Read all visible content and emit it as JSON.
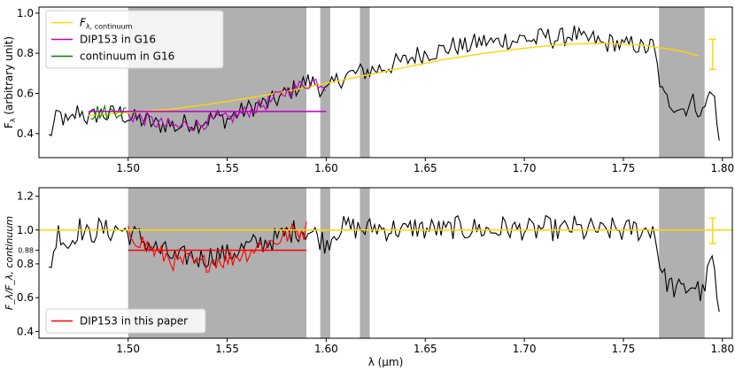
{
  "chart_data": [
    {
      "type": "line",
      "id": "top",
      "xlabel": "",
      "ylabel_main": "F",
      "ylabel_sub": "λ",
      "ylabel_rest": " (arbitrary unit)",
      "xlim": [
        1.455,
        1.805
      ],
      "ylim": [
        0.28,
        1.03
      ],
      "xticks": [
        "1.50",
        "1.55",
        "1.60",
        "1.65",
        "1.70",
        "1.75",
        "1.80"
      ],
      "yticks": [
        "0.4",
        "0.6",
        "0.8",
        "1.0"
      ],
      "shaded_bands": [
        [
          1.5,
          1.59
        ],
        [
          1.597,
          1.602
        ],
        [
          1.617,
          1.622
        ],
        [
          1.768,
          1.791
        ]
      ],
      "legend": {
        "placement": "top-left",
        "entries": [
          {
            "main": "F",
            "sub": "λ, continuum",
            "color": "#FFD700"
          },
          {
            "main": "DIP153 in G16",
            "sub": "",
            "color": "#BF00BF"
          },
          {
            "main": "continuum in G16",
            "sub": "",
            "color": "#008000"
          }
        ]
      },
      "series": [
        {
          "name": "F",
          "role": "spectrum",
          "color": "#000000",
          "x": [
            1.46,
            1.465,
            1.47,
            1.475,
            1.48,
            1.485,
            1.49,
            1.495,
            1.5,
            1.505,
            1.51,
            1.515,
            1.52,
            1.525,
            1.53,
            1.535,
            1.54,
            1.545,
            1.55,
            1.555,
            1.56,
            1.565,
            1.57,
            1.575,
            1.58,
            1.585,
            1.59,
            1.595,
            1.6,
            1.605,
            1.61,
            1.615,
            1.62,
            1.625,
            1.63,
            1.635,
            1.64,
            1.645,
            1.65,
            1.655,
            1.66,
            1.665,
            1.67,
            1.675,
            1.68,
            1.685,
            1.69,
            1.695,
            1.7,
            1.705,
            1.71,
            1.715,
            1.72,
            1.725,
            1.73,
            1.735,
            1.74,
            1.745,
            1.75,
            1.755,
            1.76,
            1.765,
            1.77,
            1.775,
            1.78,
            1.785,
            1.79,
            1.795,
            1.799
          ],
          "y": [
            0.38,
            0.5,
            0.44,
            0.52,
            0.47,
            0.5,
            0.49,
            0.51,
            0.48,
            0.47,
            0.46,
            0.44,
            0.45,
            0.43,
            0.46,
            0.45,
            0.47,
            0.48,
            0.47,
            0.5,
            0.52,
            0.54,
            0.55,
            0.57,
            0.6,
            0.63,
            0.66,
            0.65,
            0.6,
            0.66,
            0.69,
            0.7,
            0.71,
            0.72,
            0.73,
            0.75,
            0.76,
            0.79,
            0.8,
            0.81,
            0.82,
            0.84,
            0.83,
            0.85,
            0.86,
            0.85,
            0.87,
            0.86,
            0.88,
            0.86,
            0.89,
            0.87,
            0.88,
            0.9,
            0.86,
            0.87,
            0.84,
            0.86,
            0.83,
            0.85,
            0.82,
            0.84,
            0.58,
            0.55,
            0.52,
            0.56,
            0.5,
            0.64,
            0.3
          ],
          "noise": 0.05
        },
        {
          "name": "F_cont",
          "role": "continuum_fit",
          "color": "#FFD700",
          "x": [
            1.48,
            1.5,
            1.52,
            1.54,
            1.56,
            1.58,
            1.6,
            1.62,
            1.64,
            1.66,
            1.68,
            1.7,
            1.72,
            1.74,
            1.76,
            1.78,
            1.79
          ],
          "y": [
            0.49,
            0.505,
            0.52,
            0.545,
            0.575,
            0.61,
            0.65,
            0.69,
            0.73,
            0.77,
            0.8,
            0.825,
            0.845,
            0.85,
            0.84,
            0.81,
            0.78
          ]
        },
        {
          "name": "DIP153 in G16",
          "role": "dip",
          "color": "#BF00BF",
          "x": [
            1.5,
            1.505,
            1.51,
            1.515,
            1.52,
            1.525,
            1.53,
            1.535,
            1.54,
            1.545,
            1.55,
            1.555,
            1.56,
            1.565,
            1.57,
            1.575,
            1.58,
            1.585,
            1.59,
            1.595,
            1.6
          ],
          "y": [
            0.49,
            0.48,
            0.47,
            0.45,
            0.44,
            0.43,
            0.45,
            0.44,
            0.46,
            0.47,
            0.47,
            0.49,
            0.51,
            0.53,
            0.55,
            0.58,
            0.61,
            0.63,
            0.65,
            0.66,
            0.64
          ],
          "noise": 0.035
        },
        {
          "name": "continuum in G16",
          "role": "continuum_region",
          "color": "#008000",
          "x": [
            1.481,
            1.485,
            1.49,
            1.495,
            1.5
          ],
          "y": [
            0.5,
            0.51,
            0.5,
            0.52,
            0.5
          ],
          "noise": 0.04
        }
      ],
      "hlines": [
        {
          "y": 0.51,
          "x": [
            1.48,
            1.6
          ],
          "color": "#BF00BF"
        }
      ],
      "errorbar": {
        "x": 1.795,
        "y": 0.8,
        "lo": 0.72,
        "hi": 0.87,
        "color": "#FFD700"
      }
    },
    {
      "type": "line",
      "id": "bottom",
      "xlabel": "λ (μm)",
      "ylabel": "F_λ/F_λ, continuum",
      "xlim": [
        1.455,
        1.805
      ],
      "ylim": [
        0.36,
        1.25
      ],
      "xticks": [
        "1.50",
        "1.55",
        "1.60",
        "1.65",
        "1.70",
        "1.75",
        "1.80"
      ],
      "yticks": [
        "0.4",
        "0.6",
        "0.8",
        "1.0",
        "1.2"
      ],
      "extra_ytick": {
        "label": "0.88",
        "value": 0.88,
        "color": "#FF0000"
      },
      "shaded_bands": [
        [
          1.5,
          1.59
        ],
        [
          1.597,
          1.602
        ],
        [
          1.617,
          1.622
        ],
        [
          1.768,
          1.791
        ]
      ],
      "legend": {
        "placement": "bottom-left",
        "entries": [
          {
            "main": "DIP153 in this paper",
            "sub": "",
            "color": "#FF0000"
          }
        ]
      },
      "series": [
        {
          "name": "F",
          "role": "normalized_spectrum",
          "color": "#000000",
          "x": [
            1.46,
            1.465,
            1.47,
            1.475,
            1.48,
            1.485,
            1.49,
            1.495,
            1.5,
            1.505,
            1.51,
            1.515,
            1.52,
            1.525,
            1.53,
            1.535,
            1.54,
            1.545,
            1.55,
            1.555,
            1.56,
            1.565,
            1.57,
            1.575,
            1.58,
            1.585,
            1.59,
            1.595,
            1.6,
            1.605,
            1.61,
            1.615,
            1.62,
            1.625,
            1.63,
            1.635,
            1.64,
            1.645,
            1.65,
            1.655,
            1.66,
            1.665,
            1.67,
            1.675,
            1.68,
            1.685,
            1.69,
            1.695,
            1.7,
            1.705,
            1.71,
            1.715,
            1.72,
            1.725,
            1.73,
            1.735,
            1.74,
            1.745,
            1.75,
            1.755,
            1.76,
            1.765,
            1.77,
            1.775,
            1.78,
            1.785,
            1.79,
            1.795,
            1.799
          ],
          "y": [
            0.76,
            1.0,
            0.9,
            1.02,
            0.96,
            1.01,
            0.99,
            1.01,
            0.98,
            0.96,
            0.92,
            0.88,
            0.86,
            0.82,
            0.85,
            0.83,
            0.84,
            0.86,
            0.85,
            0.88,
            0.9,
            0.92,
            0.93,
            0.95,
            0.98,
            1.0,
            1.0,
            0.97,
            0.92,
            1.0,
            1.02,
            1.01,
            1.0,
            1.02,
            1.0,
            1.01,
            0.99,
            1.02,
            1.0,
            1.01,
            0.99,
            1.02,
            1.0,
            1.01,
            1.0,
            0.99,
            1.02,
            1.0,
            1.01,
            0.99,
            1.02,
            1.0,
            1.0,
            1.02,
            0.99,
            1.01,
            0.98,
            1.01,
            0.99,
            1.01,
            0.99,
            1.02,
            0.72,
            0.66,
            0.64,
            0.68,
            0.62,
            0.85,
            0.38
          ],
          "noise": 0.07
        },
        {
          "name": "DIP153 in this paper",
          "role": "dip",
          "color": "#FF0000",
          "x": [
            1.5,
            1.505,
            1.51,
            1.515,
            1.52,
            1.525,
            1.53,
            1.535,
            1.54,
            1.545,
            1.55,
            1.555,
            1.56,
            1.565,
            1.57,
            1.575,
            1.58,
            1.585,
            1.59
          ],
          "y": [
            0.98,
            0.95,
            0.9,
            0.86,
            0.84,
            0.8,
            0.82,
            0.79,
            0.81,
            0.83,
            0.82,
            0.85,
            0.87,
            0.9,
            0.92,
            0.94,
            0.97,
            0.99,
            1.0
          ],
          "noise": 0.06
        }
      ],
      "hlines": [
        {
          "y": 1.0,
          "x": [
            1.455,
            1.805
          ],
          "color": "#FFD700"
        },
        {
          "y": 0.88,
          "x": [
            1.5,
            1.59
          ],
          "color": "#FF0000"
        }
      ],
      "errorbar": {
        "x": 1.795,
        "y": 1.0,
        "lo": 0.92,
        "hi": 1.07,
        "color": "#FFD700"
      }
    }
  ]
}
